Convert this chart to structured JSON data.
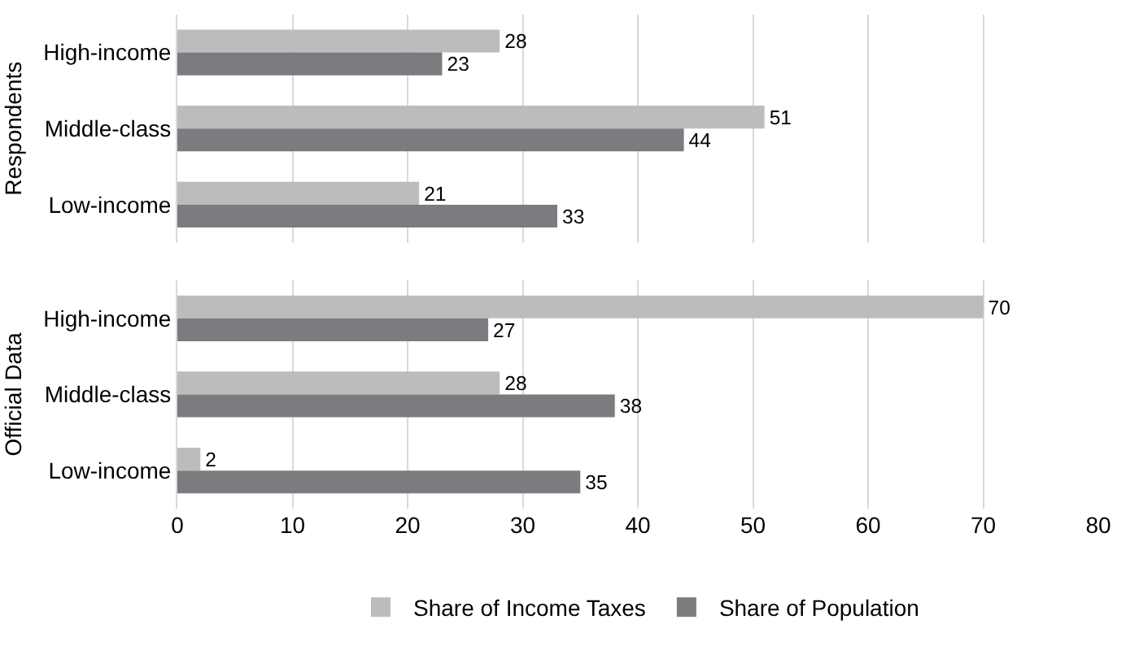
{
  "chart_data": [
    {
      "type": "bar",
      "orientation": "horizontal",
      "ylabel": "Respondents",
      "categories": [
        "High-income",
        "Middle-class",
        "Low-income"
      ],
      "series": [
        {
          "color": "#bcbcbc",
          "values": [
            28,
            51,
            21
          ]
        },
        {
          "color": "#7c7c80",
          "values": [
            23,
            44,
            33
          ]
        }
      ],
      "xlim": [
        0,
        80
      ],
      "xticks": [
        0,
        10,
        20,
        30,
        40,
        50,
        60,
        70,
        80
      ],
      "grid": "x",
      "data_labels": true,
      "tick_labels": "y"
    },
    {
      "type": "bar",
      "orientation": "horizontal",
      "ylabel": "Official Data",
      "categories": [
        "High-income",
        "Middle-class",
        "Low-income"
      ],
      "series": [
        {
          "name": "Share of Income Taxes",
          "color": "#bcbcbc",
          "values": [
            70,
            28,
            2
          ]
        },
        {
          "name": "Share of Population",
          "color": "#7c7c80",
          "values": [
            27,
            38,
            35
          ]
        }
      ],
      "xlim": [
        0,
        80
      ],
      "xticks": [
        0,
        10,
        20,
        30,
        40,
        50,
        60,
        70,
        80
      ],
      "grid": "x",
      "data_labels": true,
      "legend": "bottom"
    }
  ]
}
